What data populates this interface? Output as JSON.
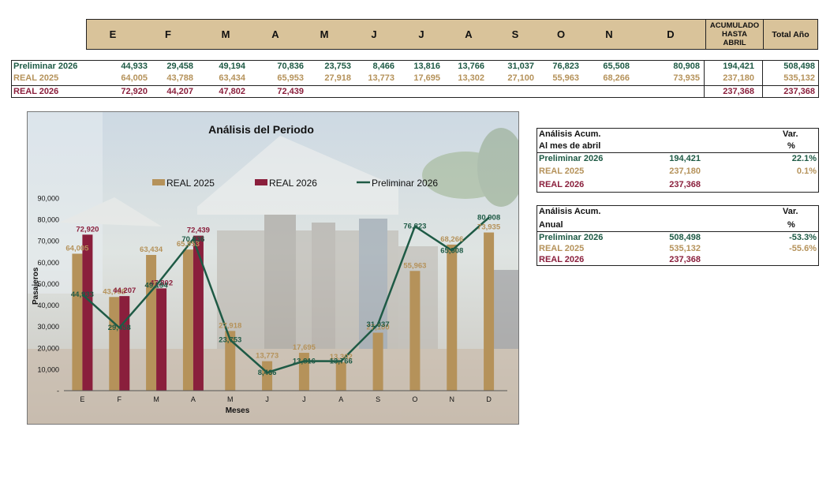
{
  "months": [
    "E",
    "F",
    "M",
    "A",
    "M",
    "J",
    "J",
    "A",
    "S",
    "O",
    "N",
    "D"
  ],
  "header": {
    "accum_label": "ACUMULADO\nHASTA\nABRIL",
    "total_label": "Total Año"
  },
  "rows": [
    {
      "label": "Preliminar 2026",
      "values": [
        "44,933",
        "29,458",
        "49,194",
        "70,836",
        "23,753",
        "8,466",
        "13,816",
        "13,766",
        "31,037",
        "76,823",
        "65,508",
        "80,908"
      ],
      "accum": "194,421",
      "total": "508,498"
    },
    {
      "label": "REAL 2025",
      "values": [
        "64,005",
        "43,788",
        "63,434",
        "65,953",
        "27,918",
        "13,773",
        "17,695",
        "13,302",
        "27,100",
        "55,963",
        "68,266",
        "73,935"
      ],
      "accum": "237,180",
      "total": "535,132"
    },
    {
      "label": "REAL 2026",
      "values": [
        "72,920",
        "44,207",
        "47,802",
        "72,439",
        "",
        "",
        "",
        "",
        "",
        "",
        "",
        ""
      ],
      "accum": "237,368",
      "total": "237,368"
    }
  ],
  "colors": {
    "preliminar": "#1e5a45",
    "real2025": "#b5925a",
    "real2026": "#8a1f3c",
    "header_bg": "#d9c39a"
  },
  "chart_data": {
    "type": "bar",
    "title": "Análisis del Periodo",
    "xlabel": "Meses",
    "ylabel": "Pasajeros",
    "categories": [
      "E",
      "F",
      "M",
      "A",
      "M",
      "J",
      "J",
      "A",
      "S",
      "O",
      "N",
      "D"
    ],
    "ylim": [
      0,
      90000
    ],
    "yticks": [
      "-",
      "10,000",
      "20,000",
      "30,000",
      "40,000",
      "50,000",
      "60,000",
      "70,000",
      "80,000",
      "90,000"
    ],
    "legend_position": "top",
    "series": [
      {
        "name": "REAL 2025",
        "kind": "bar",
        "color": "#b5925a",
        "values": [
          64005,
          43788,
          63434,
          65953,
          27918,
          13773,
          17695,
          13302,
          27100,
          55963,
          68266,
          73935
        ],
        "labels": [
          "64,005",
          "43,788",
          "63,434",
          "65,953",
          "27,918",
          "13,773",
          "17,695",
          "13,302",
          "27,100",
          "55,963",
          "68,266",
          "73,935"
        ]
      },
      {
        "name": "REAL 2026",
        "kind": "bar",
        "color": "#8a1f3c",
        "values": [
          72920,
          44207,
          47802,
          72439,
          null,
          null,
          null,
          null,
          null,
          null,
          null,
          null
        ],
        "labels": [
          "72,920",
          "44,207",
          "47,802",
          "72,439",
          "",
          "",
          "",
          "",
          "",
          "",
          "",
          ""
        ]
      },
      {
        "name": "Preliminar 2026",
        "kind": "line",
        "color": "#1e5a45",
        "values": [
          44933,
          29458,
          49194,
          70836,
          23753,
          8466,
          13816,
          13766,
          31037,
          76823,
          65508,
          80908
        ],
        "labels": [
          "44,933",
          "29,458",
          "49,194",
          "70,836",
          "23,753",
          "8,466",
          "13,816",
          "13,766",
          "31,037",
          "76,823",
          "65,508",
          "80,908"
        ]
      }
    ]
  },
  "analysis_month": {
    "title": "Análisis  Acum.",
    "subtitle": "Al mes de abril",
    "var_label": "Var.",
    "pct_label": "%",
    "rows": [
      {
        "label": "Preliminar 2026",
        "value": "194,421",
        "var": "22.1%"
      },
      {
        "label": "REAL 2025",
        "value": "237,180",
        "var": "0.1%"
      },
      {
        "label": "REAL 2026",
        "value": "237,368",
        "var": ""
      }
    ]
  },
  "analysis_year": {
    "title": "Análisis  Acum.",
    "subtitle": "Anual",
    "var_label": "Var.",
    "pct_label": "%",
    "rows": [
      {
        "label": "Preliminar 2026",
        "value": "508,498",
        "var": "-53.3%"
      },
      {
        "label": "REAL 2025",
        "value": "535,132",
        "var": "-55.6%"
      },
      {
        "label": "REAL 2026",
        "value": "237,368",
        "var": ""
      }
    ]
  }
}
